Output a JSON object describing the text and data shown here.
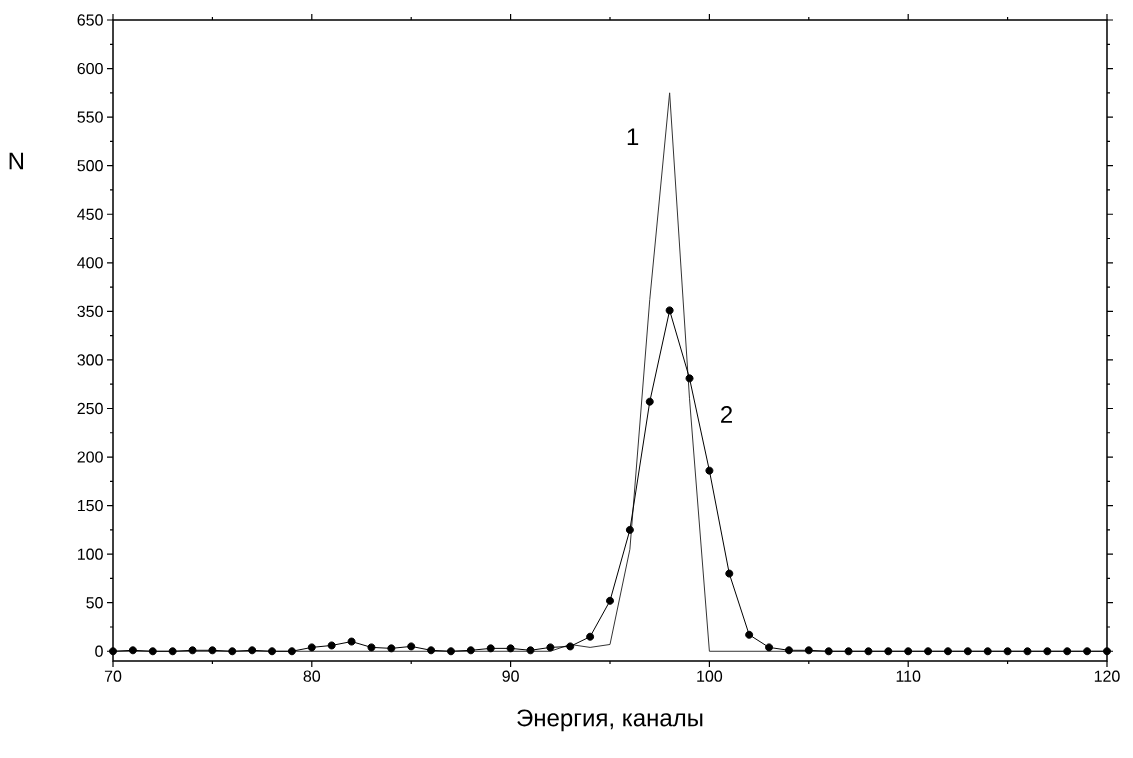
{
  "chart_data": {
    "type": "line",
    "xlabel": "Энергия, каналы",
    "ylabel": "N",
    "xlim": [
      70,
      120
    ],
    "xticks": [
      70,
      80,
      90,
      100,
      110,
      120
    ],
    "ylim": [
      -10,
      650
    ],
    "yticks": [
      0,
      50,
      100,
      150,
      200,
      250,
      300,
      350,
      400,
      450,
      500,
      550,
      600,
      650
    ],
    "grid": false,
    "legend": false,
    "series": [
      {
        "name": "1",
        "color": "#333333",
        "marker": "none",
        "x": [
          70,
          92,
          93,
          94,
          95,
          96,
          97,
          98,
          99,
          100,
          120
        ],
        "values": [
          0,
          0,
          7,
          4,
          7,
          105,
          362,
          575,
          260,
          0,
          0
        ]
      },
      {
        "name": "2",
        "color": "#000000",
        "marker": "circle",
        "x": [
          70,
          71,
          72,
          73,
          74,
          75,
          76,
          77,
          78,
          79,
          80,
          81,
          82,
          83,
          84,
          85,
          86,
          87,
          88,
          89,
          90,
          91,
          92,
          93,
          94,
          95,
          96,
          97,
          98,
          99,
          100,
          101,
          102,
          103,
          104,
          105,
          106,
          107,
          108,
          109,
          110,
          111,
          112,
          113,
          114,
          115,
          116,
          117,
          118,
          119,
          120
        ],
        "values": [
          0,
          1,
          0,
          0,
          1,
          1,
          0,
          1,
          0,
          0,
          4,
          6,
          10,
          4,
          3,
          5,
          1,
          0,
          1,
          3,
          3,
          1,
          4,
          5,
          15,
          52,
          125,
          257,
          351,
          281,
          186,
          80,
          17,
          4,
          1,
          1,
          0,
          0,
          0,
          0,
          0,
          0,
          0,
          0,
          0,
          0,
          0,
          0,
          0,
          0,
          0
        ]
      }
    ]
  }
}
